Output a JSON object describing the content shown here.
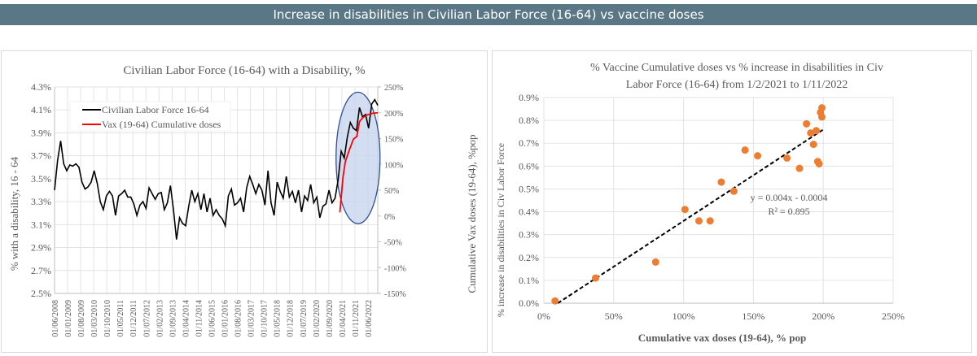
{
  "header": {
    "title": "Increase in disabilities in Civilian Labor Force (16-64) vs vaccine doses"
  },
  "chart_data": [
    {
      "type": "line",
      "title": "Civilian Labor Force (16-64) with a Disability, %",
      "ylabel": "% with a disability, 16 - 64",
      "y2label": "Cumulative Vax doses (19-64), %pop",
      "ylim": [
        2.5,
        4.3
      ],
      "y2lim": [
        -150,
        250
      ],
      "yticks": [
        "4.3%",
        "4.1%",
        "3.9%",
        "3.7%",
        "3.5%",
        "3.3%",
        "3.1%",
        "2.9%",
        "2.7%",
        "2.5%"
      ],
      "y2ticks": [
        "250%",
        "200%",
        "150%",
        "100%",
        "50%",
        "0%",
        "-50%",
        "-100%",
        "-150%"
      ],
      "xticks": [
        "01/06/2008",
        "01/01/2009",
        "01/08/2009",
        "01/03/2010",
        "01/10/2010",
        "01/05/2011",
        "01/12/2011",
        "01/07/2012",
        "01/02/2013",
        "01/09/2013",
        "01/04/2014",
        "01/11/2014",
        "01/06/2015",
        "01/01/2016",
        "01/08/2016",
        "01/03/2017",
        "01/10/2017",
        "01/05/2018",
        "01/12/2018",
        "01/07/2019",
        "01/02/2020",
        "01/09/2020",
        "01/04/2021",
        "01/11/2021",
        "01/06/2022"
      ],
      "x_range_years": [
        2008.42,
        2022.75
      ],
      "legend": "top-left",
      "grid": true,
      "series": [
        {
          "name": "Civilian Labor Force 16-64",
          "color": "#000000",
          "axis": "left",
          "values": [
            3.4,
            3.66,
            3.83,
            3.63,
            3.57,
            3.62,
            3.61,
            3.63,
            3.6,
            3.47,
            3.41,
            3.43,
            3.47,
            3.57,
            3.46,
            3.3,
            3.23,
            3.35,
            3.39,
            3.35,
            3.18,
            3.35,
            3.37,
            3.4,
            3.34,
            3.34,
            3.28,
            3.18,
            3.27,
            3.3,
            3.24,
            3.42,
            3.37,
            3.32,
            3.37,
            3.38,
            3.23,
            3.29,
            3.44,
            3.23,
            2.97,
            3.16,
            3.11,
            3.09,
            3.26,
            3.4,
            3.3,
            3.37,
            3.23,
            3.37,
            3.21,
            3.33,
            3.18,
            3.23,
            3.18,
            3.15,
            3.09,
            3.35,
            3.41,
            3.27,
            3.29,
            3.33,
            3.21,
            3.42,
            3.52,
            3.45,
            3.37,
            3.45,
            3.4,
            3.27,
            3.57,
            3.29,
            3.18,
            3.47,
            3.39,
            3.33,
            3.52,
            3.34,
            3.39,
            3.29,
            3.4,
            3.21,
            3.35,
            3.31,
            3.45,
            3.29,
            3.34,
            3.16,
            3.26,
            3.28,
            3.4,
            3.29,
            3.33,
            3.49,
            3.74,
            3.68,
            3.86,
            3.99,
            3.94,
            3.92,
            4.12,
            4.04,
            4.06,
            3.94,
            4.15,
            4.19,
            4.14
          ]
        },
        {
          "name": "Vax (19-64) Cumulative doses",
          "color": "#ff0000",
          "axis": "right",
          "x": [
            2021.07,
            2021.21,
            2021.31,
            2021.49,
            2021.67,
            2021.82,
            2021.94,
            2022.1,
            2022.28,
            2022.52,
            2022.75
          ],
          "values": [
            7,
            76,
            105,
            128,
            149,
            154,
            183,
            191,
            196,
            199,
            200
          ]
        }
      ],
      "annotation": {
        "type": "ellipse-highlight",
        "x_range_years": [
          2020.9,
          2022.85
        ],
        "y2_range": [
          -15,
          240
        ],
        "fill": "#c5d3ee",
        "stroke": "#2f4f8f"
      }
    },
    {
      "type": "scatter",
      "title_lines": [
        "% Vaccine Cumulative doses vs % increase in disabilities in Civ",
        "Labor Force (16-64) from 1/2/2021 to 1/11/2022"
      ],
      "xlabel": "Cumulative vax doses (19-64), % pop",
      "ylabel": "% increase in disabilities in Civ Labor Force",
      "xlim": [
        0,
        250
      ],
      "ylim": [
        0,
        0.9
      ],
      "xticks": [
        "0%",
        "50%",
        "100%",
        "150%",
        "200%",
        "250%"
      ],
      "yticks": [
        "0.9%",
        "0.8%",
        "0.7%",
        "0.6%",
        "0.5%",
        "0.4%",
        "0.3%",
        "0.2%",
        "0.1%",
        "0.0%"
      ],
      "color": "#ed7d31",
      "points": [
        [
          8,
          0.01
        ],
        [
          37,
          0.11
        ],
        [
          80,
          0.18
        ],
        [
          101,
          0.41
        ],
        [
          111,
          0.36
        ],
        [
          119,
          0.36
        ],
        [
          127,
          0.53
        ],
        [
          136,
          0.49
        ],
        [
          144,
          0.67
        ],
        [
          153,
          0.645
        ],
        [
          174,
          0.635
        ],
        [
          183,
          0.59
        ],
        [
          188,
          0.785
        ],
        [
          191,
          0.745
        ],
        [
          193,
          0.695
        ],
        [
          195,
          0.755
        ],
        [
          196,
          0.62
        ],
        [
          197,
          0.61
        ],
        [
          198,
          0.835
        ],
        [
          199,
          0.855
        ],
        [
          199,
          0.815
        ]
      ],
      "trendline": {
        "x": [
          10,
          200
        ],
        "y": [
          0.0,
          0.76
        ],
        "equation": "y = 0.004x - 0.0004",
        "r2": "R² = 0.895"
      },
      "grid": true
    }
  ]
}
